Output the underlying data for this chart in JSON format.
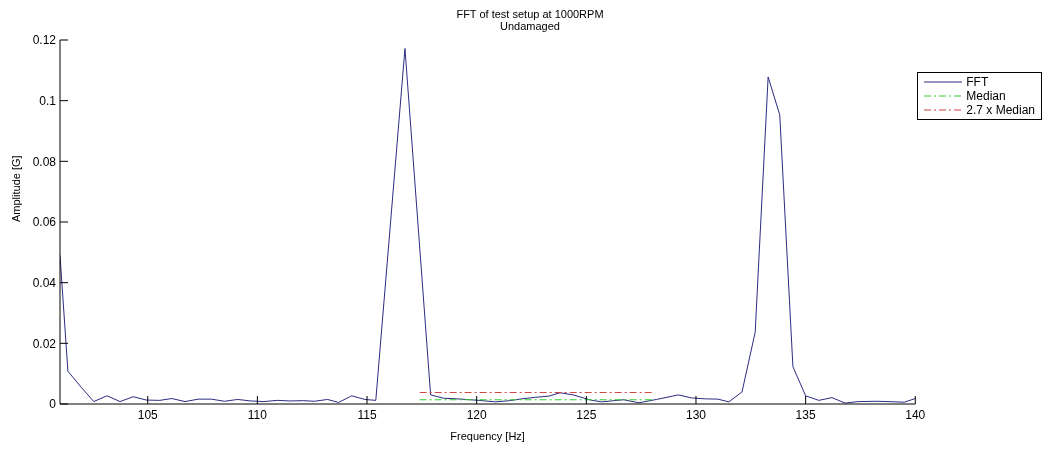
{
  "chart_data": {
    "type": "line",
    "title": "FFT of test setup at 1000RPM",
    "subtitle": "Undamaged",
    "xlabel": "Frequency [Hz]",
    "ylabel": "Amplitude [G]",
    "xlim": [
      101,
      140
    ],
    "xticks": [
      105,
      110,
      115,
      120,
      125,
      130,
      135,
      140
    ],
    "ylim": [
      0,
      0.12
    ],
    "yticks": [
      0,
      0.02,
      0.04,
      0.06,
      0.08,
      0.1,
      0.12
    ],
    "grid": false,
    "legend": "top right",
    "marker": "none",
    "series": [
      {
        "name": "FFT",
        "color": "#2b2b80",
        "line_style": "solid",
        "x": [
          101,
          101.36,
          101.97,
          102.54,
          103.14,
          103.74,
          104.34,
          104.94,
          105.55,
          106.1,
          106.7,
          107.3,
          107.9,
          108.5,
          109.1,
          109.7,
          110.3,
          110.9,
          111.5,
          112.1,
          112.6,
          113.2,
          113.7,
          114.3,
          114.9,
          115.4,
          116.73,
          117.9,
          118.5,
          119.1,
          120.1,
          120.86,
          121.5,
          122.06,
          122.67,
          123.3,
          123.8,
          124.4,
          125.2,
          125.7,
          126.7,
          127.4,
          128.2,
          129.2,
          129.8,
          130.4,
          131,
          131.5,
          132.1,
          132.7,
          133.29,
          133.82,
          134.42,
          135,
          135.6,
          136.2,
          136.8,
          137.4,
          138.3,
          139.5,
          140
        ],
        "values": [
          0.049,
          0.0108,
          0.0055,
          0.0008,
          0.0027,
          0.0008,
          0.0024,
          0.0013,
          0.0012,
          0.0018,
          0.0008,
          0.0016,
          0.0016,
          0.0009,
          0.0015,
          0.001,
          0.0008,
          0.0012,
          0.001,
          0.0011,
          0.0009,
          0.0015,
          0.0005,
          0.0027,
          0.0015,
          0.0012,
          0.1172,
          0.003,
          0.0019,
          0.0017,
          0.0012,
          0.0007,
          0.0011,
          0.0017,
          0.0022,
          0.0026,
          0.0037,
          0.003,
          0.0013,
          0.0007,
          0.0014,
          0.0004,
          0.0015,
          0.003,
          0.002,
          0.0017,
          0.0016,
          0.0007,
          0.004,
          0.0237,
          0.1078,
          0.0953,
          0.0123,
          0.0027,
          0.0012,
          0.0021,
          0.0003,
          0.0008,
          0.0009,
          0.0006,
          0.0018
        ]
      },
      {
        "name": "Median",
        "color": "#33cc33",
        "line_style": "dashed",
        "x": [
          117.4,
          128.1
        ],
        "values": [
          0.0014,
          0.0014
        ]
      },
      {
        "name": "2.7 x Median",
        "color": "#cc4444",
        "line_style": "dashed",
        "x": [
          117.4,
          128.1
        ],
        "values": [
          0.0038,
          0.0038
        ]
      }
    ]
  }
}
